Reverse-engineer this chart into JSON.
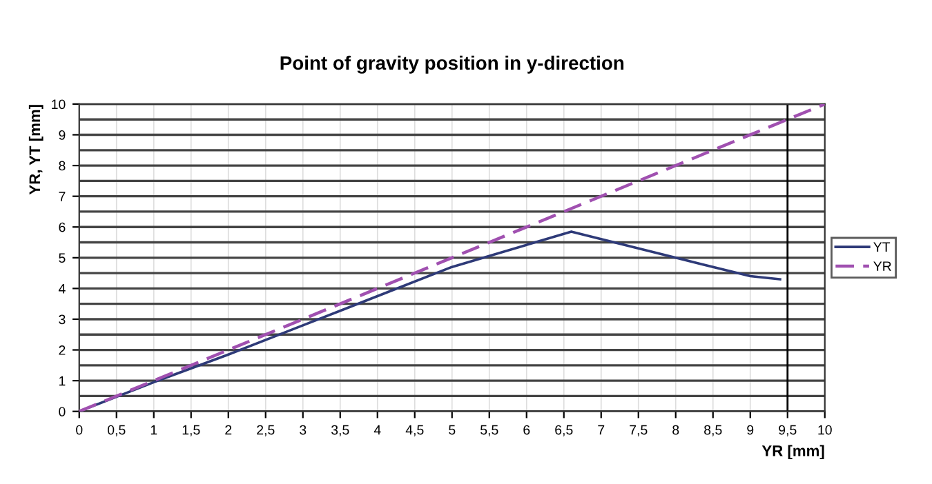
{
  "chart_data": {
    "type": "line",
    "title": "Point of gravity position in y-direction",
    "xlabel": "YR [mm]",
    "ylabel": "YR, YT [mm]",
    "series": [
      {
        "name": "YT",
        "color": "#2e3a78",
        "line_style": "solid",
        "x": [
          0,
          1,
          2,
          3,
          4,
          5,
          6.6,
          8,
          9,
          9.4
        ],
        "values": [
          0,
          0.95,
          1.85,
          2.8,
          3.75,
          4.7,
          5.85,
          5.0,
          4.4,
          4.3
        ]
      },
      {
        "name": "YR",
        "color": "#a050b0",
        "line_style": "dashed",
        "x": [
          0,
          10
        ],
        "values": [
          0,
          10
        ]
      }
    ],
    "xlim": [
      0,
      10
    ],
    "ylim": [
      0,
      10
    ],
    "xticks": [
      0,
      {
        "value": 0.5,
        "label": "0,5"
      },
      1,
      {
        "value": 1.5,
        "label": "1,5"
      },
      2,
      {
        "value": 2.5,
        "label": "2,5"
      },
      3,
      {
        "value": 3.5,
        "label": "3,5"
      },
      4,
      {
        "value": 4.5,
        "label": "4,5"
      },
      5,
      {
        "value": 5.5,
        "label": "5,5"
      },
      6,
      {
        "value": 6.5,
        "label": "6,5"
      },
      7,
      {
        "value": 7.5,
        "label": "7,5"
      },
      8,
      {
        "value": 8.5,
        "label": "8,5"
      },
      9,
      {
        "value": 9.5,
        "label": "9,5"
      },
      10
    ],
    "yticks": [
      0,
      1,
      2,
      3,
      4,
      5,
      6,
      7,
      8,
      9,
      10
    ],
    "ref_lines": [
      {
        "axis": "x",
        "value": 9.5,
        "color": "#000000"
      }
    ],
    "grid": true,
    "legend": "right",
    "marker": "none"
  }
}
